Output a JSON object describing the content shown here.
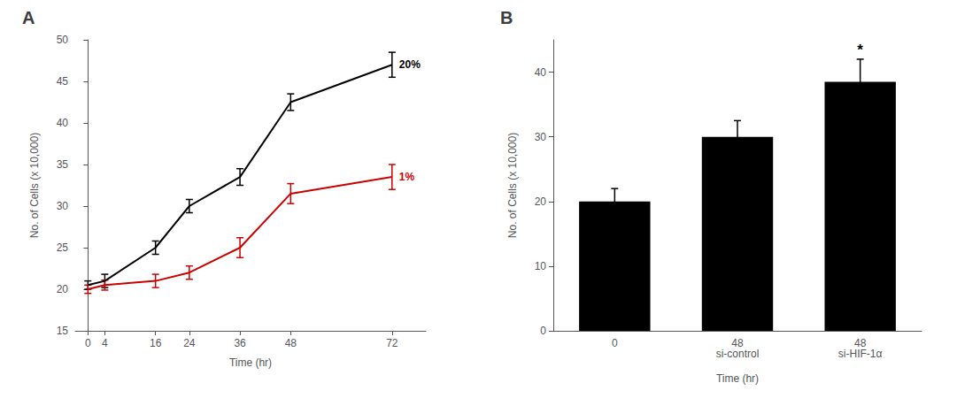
{
  "chart_data": [
    {
      "type": "line",
      "title": "A",
      "x": [
        0,
        4,
        16,
        24,
        36,
        48,
        72
      ],
      "series": [
        {
          "name": "20%",
          "color": "#000000",
          "values": [
            20.5,
            21.0,
            25.0,
            30.0,
            33.5,
            42.5,
            47.0
          ],
          "errors": [
            0.5,
            0.8,
            0.8,
            0.8,
            1.0,
            1.0,
            1.5
          ]
        },
        {
          "name": "1%",
          "color": "#cc0000",
          "values": [
            20.0,
            20.5,
            21.0,
            22.0,
            25.0,
            31.5,
            33.5
          ],
          "errors": [
            0.5,
            0.6,
            0.8,
            0.8,
            1.2,
            1.2,
            1.5
          ]
        }
      ],
      "xlabel": "Time (hr)",
      "ylabel": "No. of Cells (x 10,000)",
      "xlim": [
        -3,
        80
      ],
      "xticks": [
        0,
        4,
        16,
        24,
        36,
        48,
        72
      ],
      "ylim": [
        15,
        50
      ],
      "yticks": [
        15,
        20,
        25,
        30,
        35,
        40,
        45,
        50
      ],
      "grid": false
    },
    {
      "type": "bar",
      "title": "B",
      "categories": [
        "0",
        "48",
        "48"
      ],
      "category_sublabels": [
        null,
        "si-control",
        "si-HIF-1α"
      ],
      "values": [
        20.0,
        30.0,
        38.5
      ],
      "errors": [
        2.0,
        2.5,
        3.5
      ],
      "significance": [
        null,
        null,
        "*"
      ],
      "color": "#000000",
      "xlabel": "Time (hr)",
      "ylabel": "No. of Cells (x 10,000)",
      "ylim": [
        0,
        45
      ],
      "yticks": [
        0,
        10,
        20,
        30,
        40
      ],
      "grid": false
    }
  ]
}
